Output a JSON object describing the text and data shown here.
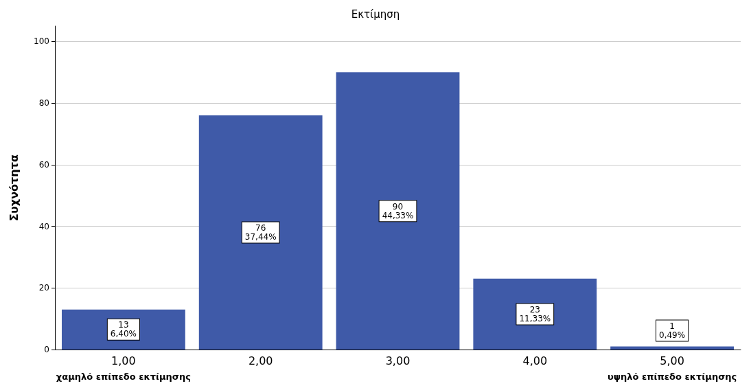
{
  "chart_data": {
    "type": "bar",
    "title": "Εκτίμηση",
    "ylabel": "Συχνότητα",
    "categories": [
      "1,00",
      "2,00",
      "3,00",
      "4,00",
      "5,00"
    ],
    "values": [
      13,
      76,
      90,
      23,
      1
    ],
    "value_labels": [
      "13\n6,40%",
      "76\n37,44%",
      "90\n44,33%",
      "23\n11,33%",
      "1\n0,49%"
    ],
    "color": "#3f5aa8",
    "ylim": [
      0,
      105
    ],
    "yticks": [
      0,
      20,
      40,
      60,
      80,
      100
    ],
    "grid": "y",
    "annotations": [
      "χαμηλό επίπεδο εκτίμησης",
      "υψηλό επίπεδο εκτίμησης"
    ]
  }
}
